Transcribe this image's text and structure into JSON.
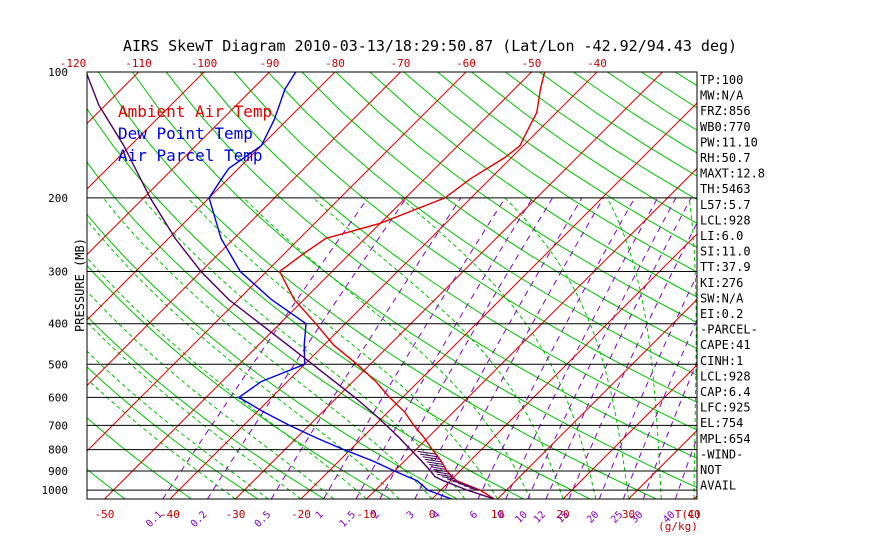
{
  "title": "AIRS SkewT Diagram 2010-03-13/18:29:50.87 (Lat/Lon -42.92/94.43 deg)",
  "colors": {
    "ambient": "#e00000",
    "dewpoint": "#0000e0",
    "parcel": "#4b0060",
    "isotherm": "#e00000",
    "dry_adiabat": "#00c000",
    "moist_adiabat": "#00c000",
    "mixing_ratio": "#8000c0",
    "isobar": "#000000",
    "tick_label": "#c00000"
  },
  "chart_data": {
    "type": "line",
    "title": "AIRS SkewT Diagram 2010-03-13/18:29:50.87 (Lat/Lon -42.92/94.43 deg)",
    "ylabel": "PRESSURE (MB)",
    "y_scale": "log",
    "ylim": [
      1050,
      100
    ],
    "pressure_ticks": [
      100,
      200,
      300,
      400,
      500,
      600,
      700,
      800,
      900,
      1000
    ],
    "temp_unit_label": "T(C)",
    "mixing_unit_label": "(g/kg)",
    "bottom_temp_ticks": [
      -50,
      -40,
      -30,
      -20,
      -10,
      0,
      10,
      20,
      30,
      40
    ],
    "top_temp_ticks": [
      -120,
      -110,
      -100,
      -90,
      -80,
      -70,
      -60,
      -50,
      -40
    ],
    "mixing_ratio_ticks": [
      "0.1",
      "0.2",
      "0.5",
      "1",
      "1.5",
      "2",
      "3",
      "4",
      "6",
      "8",
      "10",
      "12",
      "15",
      "20",
      "25",
      "30",
      "40"
    ],
    "legend": [
      "Ambient Air Temp",
      "Dew Point Temp",
      "Air Parcel Temp"
    ],
    "legend_position": "top-left",
    "series": [
      {
        "name": "Ambient Air Temp",
        "color": "#e00000",
        "points": [
          [
            1050,
            9.5
          ],
          [
            1000,
            6.0
          ],
          [
            950,
            1.0
          ],
          [
            925,
            -0.5
          ],
          [
            900,
            -2.0
          ],
          [
            850,
            -4.5
          ],
          [
            800,
            -7.5
          ],
          [
            750,
            -10.5
          ],
          [
            700,
            -14.0
          ],
          [
            650,
            -17.5
          ],
          [
            600,
            -22.0
          ],
          [
            550,
            -26.5
          ],
          [
            500,
            -32.0
          ],
          [
            450,
            -38.5
          ],
          [
            400,
            -44.5
          ],
          [
            350,
            -51.5
          ],
          [
            300,
            -58.0
          ],
          [
            270,
            -57.0
          ],
          [
            250,
            -56.0
          ],
          [
            230,
            -50.0
          ],
          [
            200,
            -44.0
          ],
          [
            180,
            -43.0
          ],
          [
            160,
            -41.0
          ],
          [
            150,
            -40.5
          ],
          [
            140,
            -41.5
          ],
          [
            125,
            -43.0
          ],
          [
            110,
            -46.0
          ],
          [
            100,
            -48.0
          ]
        ]
      },
      {
        "name": "Dew Point Temp",
        "color": "#0000e0",
        "points": [
          [
            1050,
            3.0
          ],
          [
            1000,
            -2.0
          ],
          [
            950,
            -5.0
          ],
          [
            900,
            -10.0
          ],
          [
            850,
            -15.0
          ],
          [
            800,
            -21.0
          ],
          [
            750,
            -27.0
          ],
          [
            700,
            -33.0
          ],
          [
            650,
            -39.0
          ],
          [
            600,
            -45.0
          ],
          [
            550,
            -44.0
          ],
          [
            500,
            -40.0
          ],
          [
            450,
            -43.0
          ],
          [
            400,
            -46.0
          ],
          [
            350,
            -55.0
          ],
          [
            300,
            -64.0
          ],
          [
            250,
            -72.0
          ],
          [
            200,
            -80.0
          ],
          [
            180,
            -81.0
          ],
          [
            170,
            -81.5
          ],
          [
            150,
            -80.0
          ],
          [
            130,
            -82.0
          ],
          [
            110,
            -85.0
          ],
          [
            100,
            -86.0
          ]
        ]
      },
      {
        "name": "Air Parcel Temp",
        "color": "#4b0060",
        "points": [
          [
            1050,
            9.5
          ],
          [
            1000,
            4.0
          ],
          [
            950,
            -1.0
          ],
          [
            928,
            -3.0
          ],
          [
            900,
            -4.5
          ],
          [
            850,
            -7.5
          ],
          [
            800,
            -10.8
          ],
          [
            750,
            -14.3
          ],
          [
            700,
            -18.2
          ],
          [
            650,
            -22.5
          ],
          [
            600,
            -27.3
          ],
          [
            550,
            -32.8
          ],
          [
            500,
            -38.8
          ],
          [
            450,
            -45.5
          ],
          [
            400,
            -53.0
          ],
          [
            350,
            -61.5
          ],
          [
            300,
            -70.0
          ],
          [
            250,
            -79.0
          ],
          [
            200,
            -89.0
          ],
          [
            150,
            -101.0
          ],
          [
            120,
            -111.0
          ],
          [
            100,
            -118.0
          ]
        ]
      }
    ]
  },
  "indices": [
    "TP:100",
    "MW:N/A",
    "FRZ:856",
    "WB0:770",
    "PW:11.10",
    "RH:50.7",
    "MAXT:12.8",
    "TH:5463",
    "L57:5.7",
    "LCL:928",
    "LI:6.0",
    "SI:11.0",
    "TT:37.9",
    "KI:276",
    "SW:N/A",
    "EI:0.2",
    "-PARCEL-",
    "CAPE:41",
    "CINH:1",
    "LCL:928",
    "CAP:6.4",
    "LFC:925",
    "EL:754",
    "MPL:654",
    "-WIND-",
    "NOT",
    "AVAIL"
  ]
}
